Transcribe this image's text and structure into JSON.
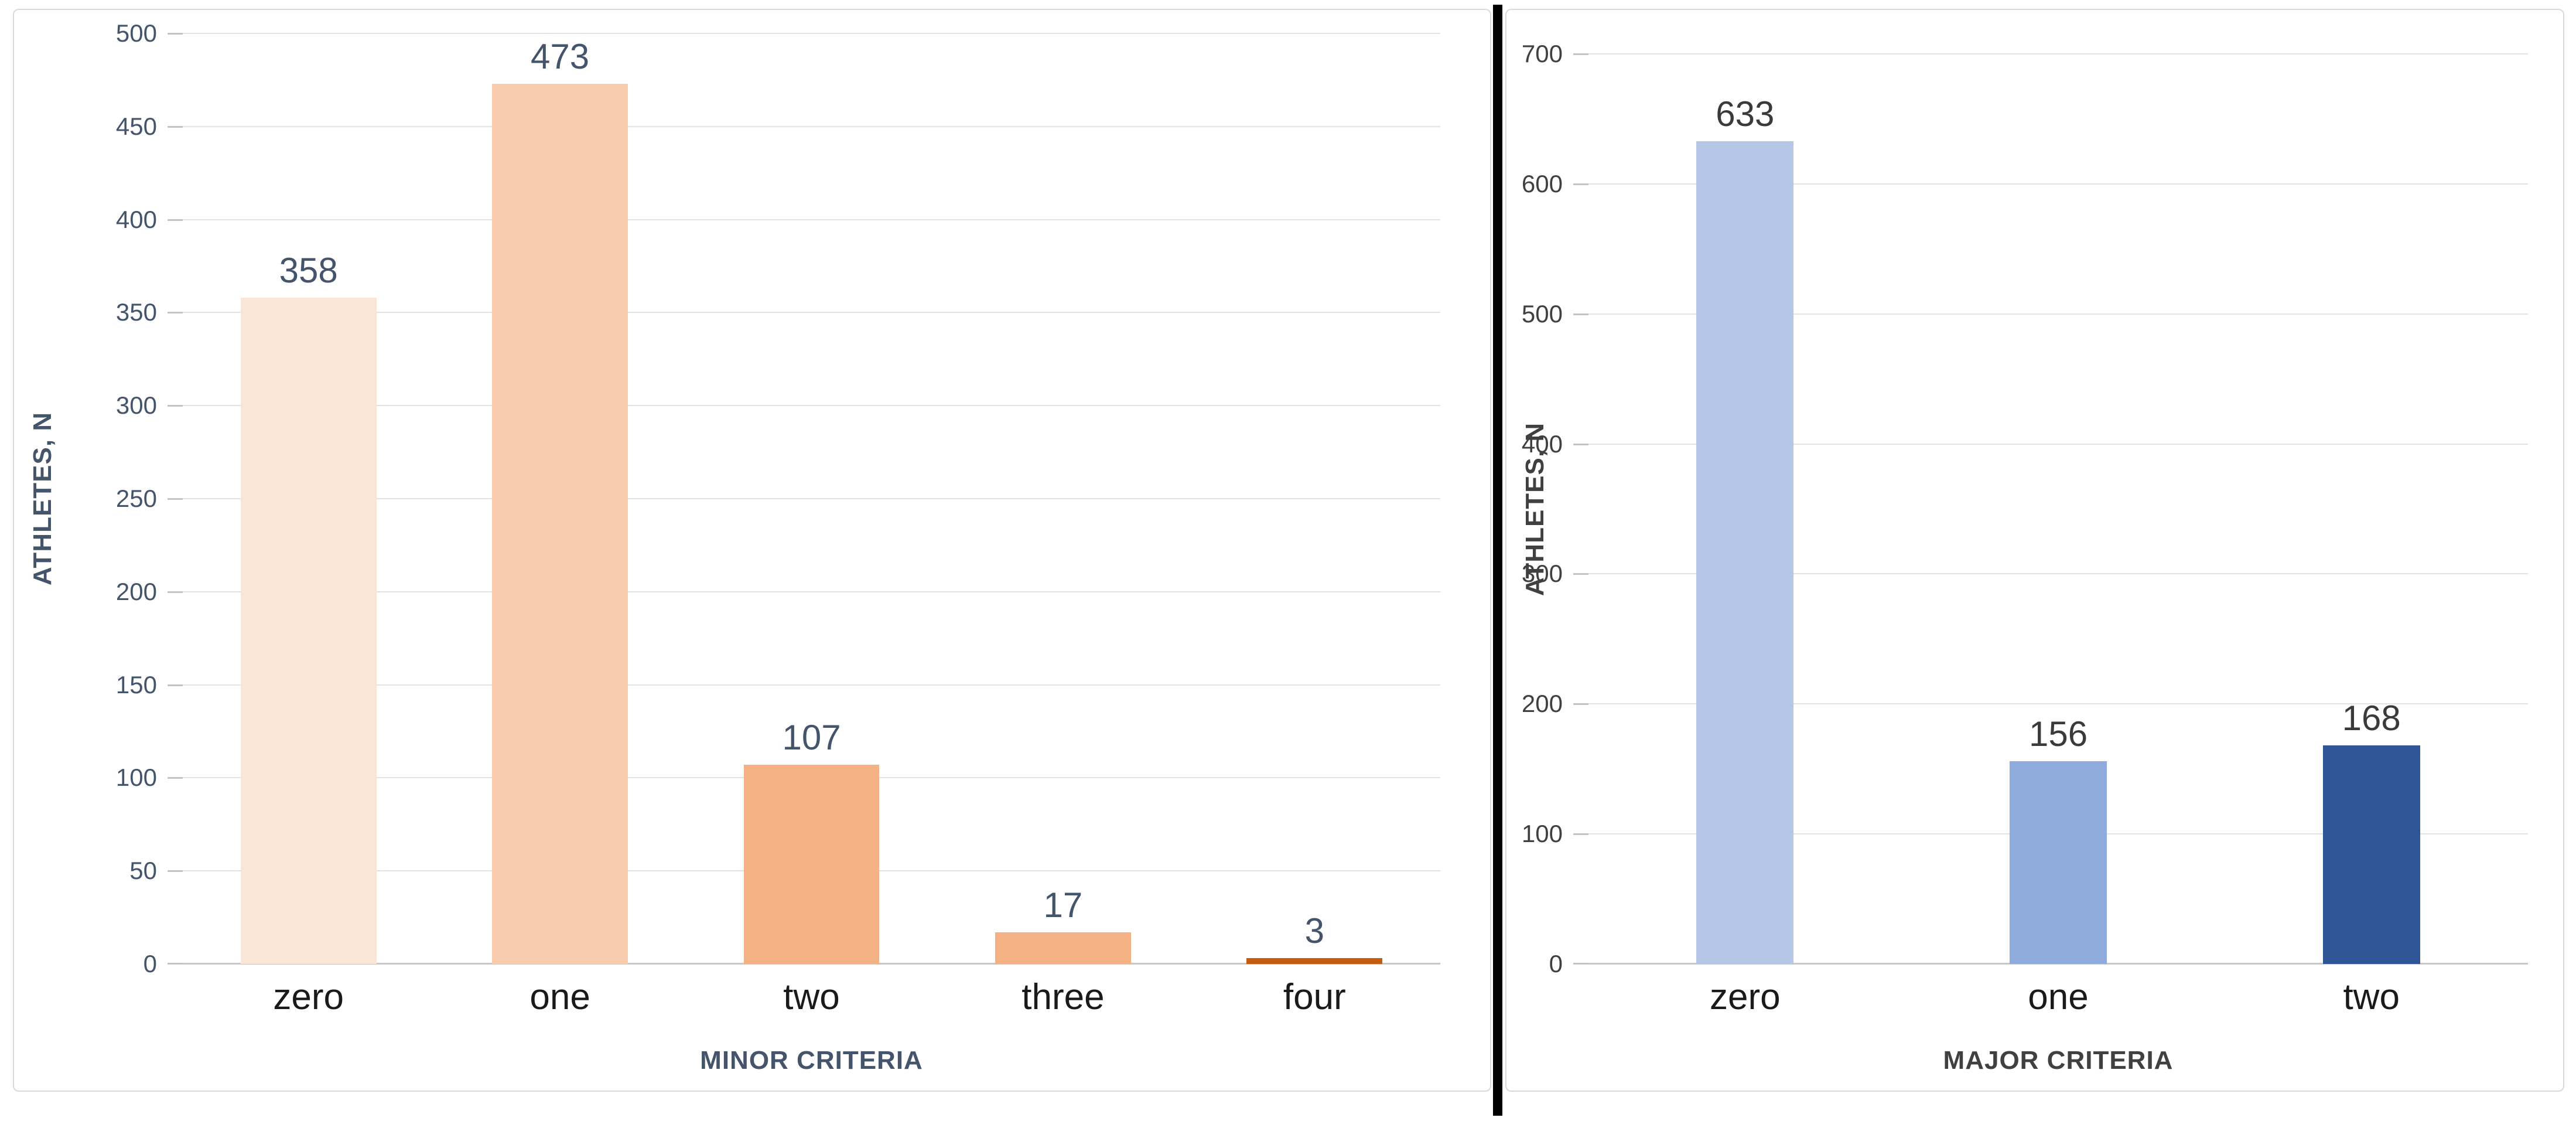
{
  "divider_color": "#000000",
  "panel_border_color": "#D9D9D9",
  "gridline_color": "#E2E2E2",
  "axis_line_color": "#C8C8C8",
  "chart_data": [
    {
      "type": "bar",
      "title": "",
      "xlabel": "MINOR CRITERIA",
      "ylabel": "ATHLETES, N",
      "categories": [
        "zero",
        "one",
        "two",
        "three",
        "four"
      ],
      "values": [
        358,
        473,
        107,
        17,
        3
      ],
      "ylim": [
        0,
        500
      ],
      "ytick_step": 50,
      "grid": true,
      "legend": "none",
      "bar_colors": [
        "#FBE5D6",
        "#F8CBAD",
        "#F4B183",
        "#F4B183",
        "#C55A11"
      ],
      "axis_text_color": "#44546A",
      "value_label_color": "#44546A",
      "category_label_color": "#1A1A1A",
      "xlabel_color": "#44546A",
      "bar_width_pct": 54
    },
    {
      "type": "bar",
      "title": "",
      "xlabel": "MAJOR CRITERIA",
      "ylabel": "ATHLETES, N",
      "categories": [
        "zero",
        "one",
        "two"
      ],
      "values": [
        633,
        156,
        168
      ],
      "ylim": [
        0,
        700
      ],
      "ytick_step": 100,
      "grid": true,
      "legend": "none",
      "bar_colors": [
        "#B4C7E7",
        "#8FAADC",
        "#2F5597"
      ],
      "axis_text_color": "#404040",
      "value_label_color": "#3A3A3A",
      "category_label_color": "#1A1A1A",
      "xlabel_color": "#404040",
      "bar_width_pct": 31
    }
  ]
}
